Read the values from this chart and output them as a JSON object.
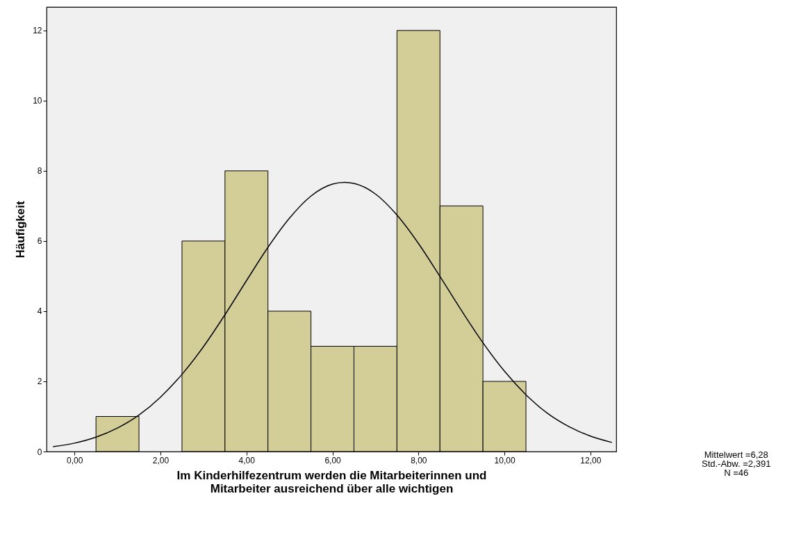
{
  "chart_data": {
    "type": "histogram",
    "xlabel": "Im Kinderhilfezentrum werden die Mitarbeiterinnen und Mitarbeiter ausreichend über alle wichtigen",
    "ylabel": "Häufigkeit",
    "bins": [
      0.5,
      1.5,
      2.5,
      3.5,
      4.5,
      5.5,
      6.5,
      7.5,
      8.5,
      9.5,
      10.5
    ],
    "series": [
      {
        "color": "#d3ce97",
        "values": [
          1,
          0,
          6,
          8,
          4,
          3,
          3,
          12,
          7,
          2
        ]
      },
      {
        "type": "line",
        "color": "#000000",
        "x": [
          -0.5,
          0,
          0.5,
          1,
          1.5,
          2,
          2.5,
          3,
          3.5,
          4,
          4.5,
          5,
          5.5,
          6,
          6.28,
          6.5,
          7,
          7.5,
          8,
          8.5,
          9,
          9.5,
          10,
          10.5,
          11,
          11.5,
          12,
          12.5
        ],
        "values": [
          0.14,
          0.24,
          0.41,
          0.67,
          1.04,
          1.55,
          2.2,
          2.99,
          3.9,
          4.87,
          5.82,
          6.65,
          7.28,
          7.62,
          7.67,
          7.64,
          7.34,
          6.74,
          5.93,
          4.99,
          4.02,
          3.1,
          2.29,
          1.62,
          1.09,
          0.71,
          0.44,
          0.26
        ]
      }
    ],
    "xlim": [
      -0.65,
      12.6
    ],
    "ylim": [
      0,
      12.67
    ],
    "xticks": [
      {
        "value": 0,
        "label": "0,00"
      },
      {
        "value": 2,
        "label": "2,00"
      },
      {
        "value": 4,
        "label": "4,00"
      },
      {
        "value": 6,
        "label": "6,00"
      },
      {
        "value": 8,
        "label": "8,00"
      },
      {
        "value": 10,
        "label": "10,00"
      },
      {
        "value": 12,
        "label": "12,00"
      }
    ],
    "yticks": [
      0,
      2,
      4,
      6,
      8,
      10,
      12
    ],
    "grid": false,
    "annotations": [
      "Mittelwert =6,28",
      "Std.-Abw. =2,391",
      "N =46"
    ]
  }
}
